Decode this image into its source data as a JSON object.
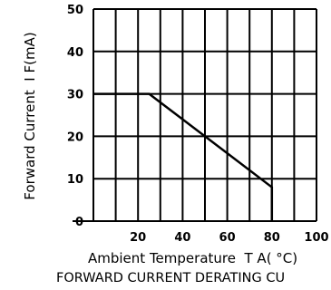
{
  "chart_data": {
    "type": "line",
    "title": "FORWARD CURRENT DERATING CU",
    "xlabel": "Ambient Temperature  T A( °C)",
    "ylabel": "Forward Current  I F(mA)",
    "xlim": [
      0,
      100
    ],
    "ylim": [
      0,
      50
    ],
    "x_ticks": [
      "20",
      "40",
      "60",
      "80",
      "100"
    ],
    "y_ticks": [
      "0",
      "10",
      "20",
      "30",
      "40",
      "50"
    ],
    "grid": true,
    "series": [
      {
        "x": [
          0,
          25,
          80,
          80
        ],
        "y": [
          30,
          30,
          8,
          0
        ]
      }
    ],
    "colors": {
      "line": "#000000",
      "grid": "#000000",
      "background": "#ffffff"
    }
  }
}
